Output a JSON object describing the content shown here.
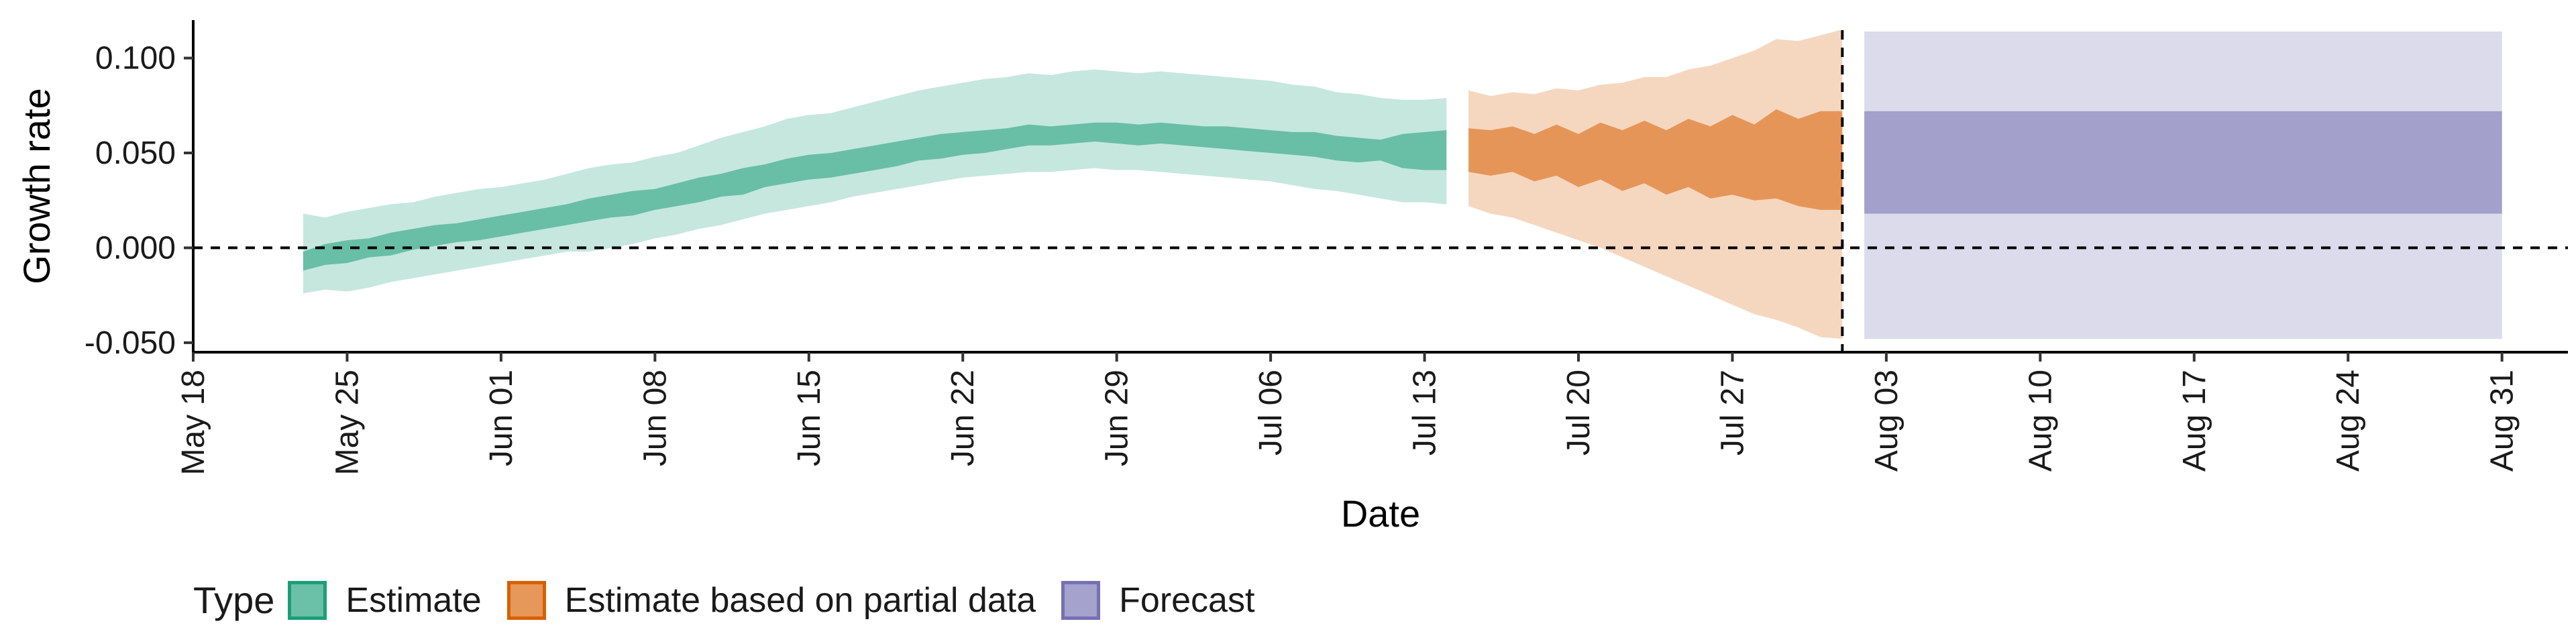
{
  "chart_data": {
    "type": "area",
    "xlabel": "Date",
    "ylabel": "Growth rate",
    "xlim": [
      "2020-05-18",
      "2020-09-03"
    ],
    "ylim": [
      -0.055,
      0.12
    ],
    "x_ticks": [
      "2020-05-18",
      "2020-05-25",
      "2020-06-01",
      "2020-06-08",
      "2020-06-15",
      "2020-06-22",
      "2020-06-29",
      "2020-07-06",
      "2020-07-13",
      "2020-07-20",
      "2020-07-27",
      "2020-08-03",
      "2020-08-10",
      "2020-08-17",
      "2020-08-24",
      "2020-08-31"
    ],
    "x_tick_labels": [
      "May 18",
      "May 25",
      "Jun 01",
      "Jun 08",
      "Jun 15",
      "Jun 22",
      "Jun 29",
      "Jul 06",
      "Jul 13",
      "Jul 20",
      "Jul 27",
      "Aug 03",
      "Aug 10",
      "Aug 17",
      "Aug 24",
      "Aug 31"
    ],
    "y_ticks": [
      -0.05,
      0.0,
      0.05,
      0.1
    ],
    "y_tick_labels": [
      "-0.050",
      "0.000",
      "0.050",
      "0.100"
    ],
    "reference_lines": {
      "horizontal_y": 0.0,
      "vertical_x": "2020-08-01"
    },
    "legend": {
      "title": "Type",
      "position": "bottom-left"
    },
    "grid": false,
    "series": [
      {
        "name": "Estimate",
        "fill_color": "#1b9e77",
        "date": [
          "2020-05-23",
          "2020-05-24",
          "2020-05-25",
          "2020-05-26",
          "2020-05-27",
          "2020-05-28",
          "2020-05-29",
          "2020-05-30",
          "2020-05-31",
          "2020-06-01",
          "2020-06-02",
          "2020-06-03",
          "2020-06-04",
          "2020-06-05",
          "2020-06-06",
          "2020-06-07",
          "2020-06-08",
          "2020-06-09",
          "2020-06-10",
          "2020-06-11",
          "2020-06-12",
          "2020-06-13",
          "2020-06-14",
          "2020-06-15",
          "2020-06-16",
          "2020-06-17",
          "2020-06-18",
          "2020-06-19",
          "2020-06-20",
          "2020-06-21",
          "2020-06-22",
          "2020-06-23",
          "2020-06-24",
          "2020-06-25",
          "2020-06-26",
          "2020-06-27",
          "2020-06-28",
          "2020-06-29",
          "2020-06-30",
          "2020-07-01",
          "2020-07-02",
          "2020-07-03",
          "2020-07-04",
          "2020-07-05",
          "2020-07-06",
          "2020-07-07",
          "2020-07-08",
          "2020-07-09",
          "2020-07-10",
          "2020-07-11",
          "2020-07-12",
          "2020-07-13",
          "2020-07-14"
        ],
        "upper_90": [
          0.018,
          0.016,
          0.019,
          0.021,
          0.023,
          0.024,
          0.027,
          0.029,
          0.031,
          0.032,
          0.034,
          0.036,
          0.039,
          0.042,
          0.044,
          0.045,
          0.048,
          0.05,
          0.054,
          0.058,
          0.061,
          0.064,
          0.068,
          0.07,
          0.071,
          0.074,
          0.077,
          0.08,
          0.083,
          0.085,
          0.087,
          0.089,
          0.09,
          0.092,
          0.091,
          0.093,
          0.094,
          0.093,
          0.092,
          0.093,
          0.092,
          0.091,
          0.09,
          0.089,
          0.088,
          0.086,
          0.085,
          0.082,
          0.081,
          0.079,
          0.078,
          0.078,
          0.079
        ],
        "upper_50": [
          -0.002,
          0.002,
          0.004,
          0.005,
          0.008,
          0.01,
          0.012,
          0.013,
          0.015,
          0.017,
          0.019,
          0.021,
          0.023,
          0.026,
          0.028,
          0.03,
          0.031,
          0.034,
          0.037,
          0.039,
          0.042,
          0.044,
          0.047,
          0.049,
          0.05,
          0.052,
          0.054,
          0.056,
          0.058,
          0.06,
          0.061,
          0.062,
          0.063,
          0.065,
          0.064,
          0.065,
          0.066,
          0.066,
          0.065,
          0.066,
          0.065,
          0.064,
          0.064,
          0.063,
          0.062,
          0.061,
          0.061,
          0.059,
          0.058,
          0.057,
          0.06,
          0.061,
          0.062
        ],
        "median": [
          -0.006,
          -0.004,
          -0.002,
          0.0,
          0.002,
          0.004,
          0.006,
          0.008,
          0.01,
          0.012,
          0.014,
          0.016,
          0.018,
          0.021,
          0.023,
          0.025,
          0.027,
          0.03,
          0.032,
          0.035,
          0.037,
          0.04,
          0.042,
          0.044,
          0.045,
          0.047,
          0.049,
          0.051,
          0.053,
          0.054,
          0.056,
          0.057,
          0.058,
          0.059,
          0.059,
          0.06,
          0.061,
          0.061,
          0.06,
          0.06,
          0.06,
          0.059,
          0.058,
          0.057,
          0.057,
          0.056,
          0.055,
          0.053,
          0.052,
          0.052,
          0.052,
          0.052,
          0.052
        ],
        "lower_50": [
          -0.012,
          -0.009,
          -0.008,
          -0.005,
          -0.004,
          -0.001,
          0.001,
          0.003,
          0.004,
          0.006,
          0.008,
          0.01,
          0.012,
          0.014,
          0.016,
          0.017,
          0.02,
          0.022,
          0.024,
          0.027,
          0.028,
          0.032,
          0.034,
          0.036,
          0.037,
          0.039,
          0.041,
          0.043,
          0.046,
          0.047,
          0.049,
          0.05,
          0.052,
          0.054,
          0.054,
          0.055,
          0.056,
          0.055,
          0.054,
          0.055,
          0.054,
          0.053,
          0.052,
          0.051,
          0.05,
          0.049,
          0.048,
          0.046,
          0.045,
          0.046,
          0.042,
          0.041,
          0.041
        ],
        "lower_90": [
          -0.024,
          -0.022,
          -0.023,
          -0.021,
          -0.018,
          -0.016,
          -0.014,
          -0.012,
          -0.01,
          -0.008,
          -0.006,
          -0.004,
          -0.002,
          -0.002,
          0.0,
          0.002,
          0.005,
          0.007,
          0.01,
          0.012,
          0.015,
          0.018,
          0.02,
          0.022,
          0.024,
          0.027,
          0.029,
          0.031,
          0.033,
          0.035,
          0.037,
          0.038,
          0.039,
          0.04,
          0.04,
          0.041,
          0.042,
          0.041,
          0.041,
          0.04,
          0.039,
          0.038,
          0.037,
          0.036,
          0.035,
          0.033,
          0.031,
          0.03,
          0.028,
          0.026,
          0.024,
          0.024,
          0.023
        ]
      },
      {
        "name": "Estimate based on partial data",
        "fill_color": "#d95f02",
        "date": [
          "2020-07-15",
          "2020-07-16",
          "2020-07-17",
          "2020-07-18",
          "2020-07-19",
          "2020-07-20",
          "2020-07-21",
          "2020-07-22",
          "2020-07-23",
          "2020-07-24",
          "2020-07-25",
          "2020-07-26",
          "2020-07-27",
          "2020-07-28",
          "2020-07-29",
          "2020-07-30",
          "2020-07-31",
          "2020-08-01"
        ],
        "upper_90": [
          0.083,
          0.08,
          0.082,
          0.081,
          0.084,
          0.083,
          0.086,
          0.087,
          0.09,
          0.09,
          0.094,
          0.096,
          0.1,
          0.104,
          0.11,
          0.109,
          0.112,
          0.115
        ],
        "upper_50": [
          0.063,
          0.062,
          0.064,
          0.06,
          0.065,
          0.06,
          0.066,
          0.062,
          0.067,
          0.062,
          0.068,
          0.064,
          0.07,
          0.065,
          0.073,
          0.068,
          0.072,
          0.072
        ],
        "median": [
          0.051,
          0.05,
          0.052,
          0.048,
          0.052,
          0.047,
          0.051,
          0.046,
          0.05,
          0.045,
          0.048,
          0.043,
          0.047,
          0.043,
          0.048,
          0.042,
          0.045,
          0.045
        ],
        "lower_50": [
          0.04,
          0.038,
          0.04,
          0.035,
          0.038,
          0.032,
          0.036,
          0.03,
          0.034,
          0.028,
          0.032,
          0.026,
          0.028,
          0.025,
          0.026,
          0.022,
          0.02,
          0.02
        ],
        "lower_90": [
          0.022,
          0.018,
          0.016,
          0.012,
          0.008,
          0.004,
          0.0,
          -0.005,
          -0.01,
          -0.015,
          -0.02,
          -0.025,
          -0.03,
          -0.035,
          -0.038,
          -0.042,
          -0.047,
          -0.048
        ]
      },
      {
        "name": "Forecast",
        "fill_color": "#7570b3",
        "date": [
          "2020-08-02",
          "2020-08-31"
        ],
        "upper_90": [
          0.114,
          0.114
        ],
        "upper_50": [
          0.072,
          0.072
        ],
        "lower_50": [
          0.018,
          0.018
        ],
        "lower_90": [
          -0.048,
          -0.048
        ]
      }
    ]
  }
}
